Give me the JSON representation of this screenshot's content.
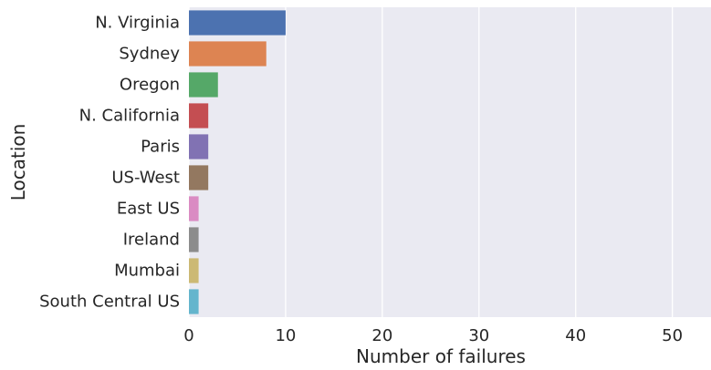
{
  "chart_data": {
    "type": "bar",
    "orientation": "horizontal",
    "categories": [
      "N. Virginia",
      "Sydney",
      "Oregon",
      "N. California",
      "Paris",
      "US-West",
      "East US",
      "Ireland",
      "Mumbai",
      "South Central US"
    ],
    "values": [
      10,
      8,
      3,
      2,
      2,
      2,
      1,
      1,
      1,
      1
    ],
    "colors": [
      "#4c72b0",
      "#dd8452",
      "#55a868",
      "#c44e52",
      "#8172b3",
      "#937860",
      "#da8bc3",
      "#8c8c8c",
      "#ccb974",
      "#64b5cd"
    ],
    "xlabel": "Number of failures",
    "ylabel": "Location",
    "xlim": [
      0,
      54
    ],
    "xticks": [
      0,
      10,
      20,
      30,
      40,
      50
    ],
    "grid": true,
    "background": "#eaeaf2"
  }
}
